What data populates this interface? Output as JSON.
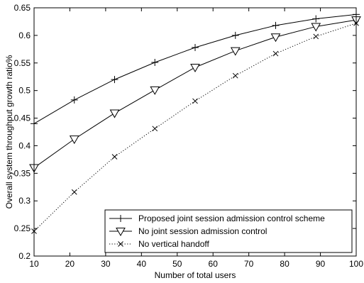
{
  "chart_data": {
    "type": "line",
    "title": "",
    "xlabel": "Number of total users",
    "ylabel": "Overall system throughput growth ratio%",
    "xlim": [
      10,
      100
    ],
    "ylim": [
      0.2,
      0.65
    ],
    "xticks": [
      10,
      20,
      30,
      40,
      50,
      60,
      70,
      80,
      90,
      100
    ],
    "yticks": [
      0.2,
      0.25,
      0.3,
      0.35,
      0.4,
      0.45,
      0.5,
      0.55,
      0.6,
      0.65
    ],
    "xtick_labels": [
      "10",
      "20",
      "30",
      "40",
      "50",
      "60",
      "70",
      "80",
      "90",
      "100"
    ],
    "ytick_labels": [
      "0.2",
      "0.25",
      "0.3",
      "0.35",
      "0.4",
      "0.45",
      "0.5",
      "0.55",
      "0.6",
      "0.65"
    ],
    "grid": false,
    "legend_position": "bottom-right",
    "series": [
      {
        "name": "Proposed joint session admission control scheme",
        "marker": "plus",
        "line_style": "solid",
        "x": [
          10,
          21.25,
          32.5,
          43.75,
          55,
          66.25,
          77.5,
          88.75,
          100
        ],
        "y": [
          0.44,
          0.483,
          0.52,
          0.551,
          0.578,
          0.6,
          0.618,
          0.63,
          0.638
        ]
      },
      {
        "name": "No joint session admission control",
        "marker": "triangle-down",
        "line_style": "solid",
        "x": [
          10,
          21.25,
          32.5,
          43.75,
          55,
          66.25,
          77.5,
          88.75,
          100
        ],
        "y": [
          0.36,
          0.412,
          0.459,
          0.501,
          0.542,
          0.572,
          0.597,
          0.616,
          0.628
        ]
      },
      {
        "name": "No vertical handoff",
        "marker": "x",
        "line_style": "dotted",
        "x": [
          10,
          21.25,
          32.5,
          43.75,
          55,
          66.25,
          77.5,
          88.75,
          100
        ],
        "y": [
          0.245,
          0.316,
          0.38,
          0.431,
          0.481,
          0.527,
          0.567,
          0.598,
          0.622
        ]
      }
    ]
  }
}
